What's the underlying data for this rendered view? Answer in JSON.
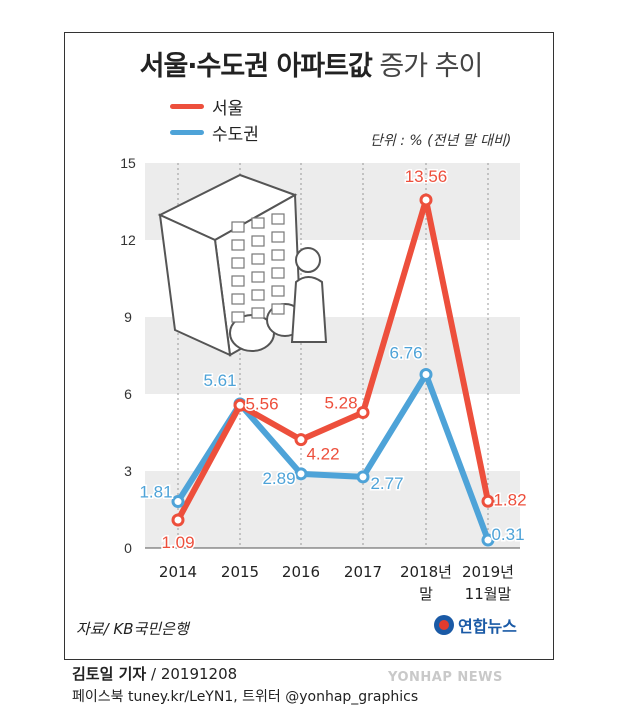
{
  "title": {
    "bold": "서울·수도권 아파트값",
    "light": "증가 추이"
  },
  "unit": "단위 : % (전년 말 대비)",
  "source": "자료/ KB국민은행",
  "logo": "연합뉴스",
  "reporter": {
    "name": "김토일 기자",
    "date": " / 20191208"
  },
  "social": "페이스북 tuney.kr/LeYN1, 트위터 @yonhap_graphics",
  "watermark": "YONHAP NEWS",
  "colors": {
    "seoul": "#ed4f3c",
    "capital": "#4ea3d8",
    "band": "#ececec"
  },
  "chart_data": {
    "type": "line",
    "title": "서울·수도권 아파트값 증가 추이",
    "xlabel": "",
    "ylabel": "",
    "ylim": [
      0,
      15
    ],
    "yticks": [
      "0",
      "3",
      "6",
      "9",
      "12",
      "15"
    ],
    "categories": [
      [
        "2014"
      ],
      [
        "2015"
      ],
      [
        "2016"
      ],
      [
        "2017"
      ],
      [
        "2018년",
        "말"
      ],
      [
        "2019년",
        "11월말"
      ]
    ],
    "legend": "top-left",
    "series": [
      {
        "name": "서울",
        "color": "#ed4f3c",
        "values": [
          1.09,
          5.56,
          4.22,
          5.28,
          13.56,
          1.82
        ],
        "labels": [
          "1.09",
          "5.56",
          "4.22",
          "5.28",
          "13.56",
          "1.82"
        ]
      },
      {
        "name": "수도권",
        "color": "#4ea3d8",
        "values": [
          1.81,
          5.61,
          2.89,
          2.77,
          6.76,
          0.31
        ],
        "labels": [
          "1.81",
          "5.61",
          "2.89",
          "2.77",
          "6.76",
          "0.31"
        ]
      }
    ]
  }
}
